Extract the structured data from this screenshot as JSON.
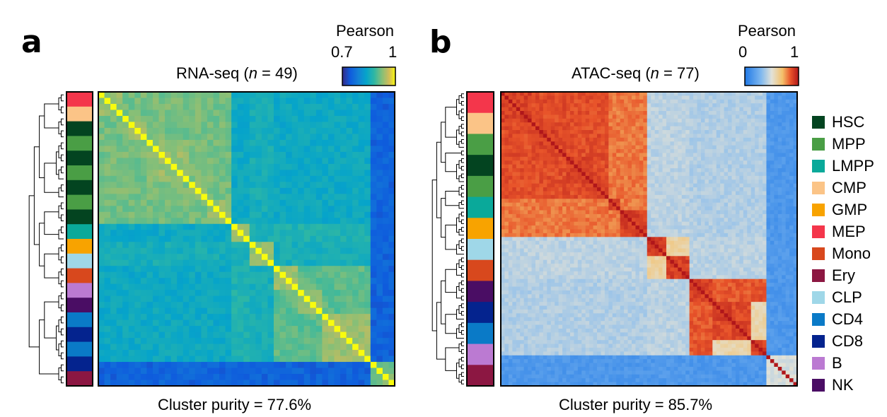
{
  "panels": [
    {
      "letter": "a",
      "title_prefix": "RNA-seq (",
      "title_n": "n",
      "title_suffix": " = 49)",
      "colorbar_label": "Pearson",
      "colorbar_min": "0.7",
      "colorbar_max": "1",
      "purity": "Cluster purity = 77.6%"
    },
    {
      "letter": "b",
      "title_prefix": "ATAC-seq (",
      "title_n": "n",
      "title_suffix": " = 77)",
      "colorbar_label": "Pearson",
      "colorbar_min": "0",
      "colorbar_max": "1",
      "purity": "Cluster purity = 85.7%"
    }
  ],
  "legend": [
    {
      "label": "HSC",
      "color": "#034420"
    },
    {
      "label": "MPP",
      "color": "#4a9e45"
    },
    {
      "label": "LMPP",
      "color": "#0aa99a"
    },
    {
      "label": "CMP",
      "color": "#fbc487"
    },
    {
      "label": "GMP",
      "color": "#f8a300"
    },
    {
      "label": "MEP",
      "color": "#f4364b"
    },
    {
      "label": "Mono",
      "color": "#d8481d"
    },
    {
      "label": "Ery",
      "color": "#8c1742"
    },
    {
      "label": "CLP",
      "color": "#9fd7e8"
    },
    {
      "label": "CD4",
      "color": "#0a7ac7"
    },
    {
      "label": "CD8",
      "color": "#04238e"
    },
    {
      "label": "B",
      "color": "#bb7ad2"
    },
    {
      "label": "NK",
      "color": "#4a0d64"
    }
  ],
  "chart_data": [
    {
      "type": "heatmap",
      "title": "RNA-seq (n = 49)",
      "n": 49,
      "metric": "Pearson",
      "color_range": [
        0.7,
        1
      ],
      "colorscale": "parula",
      "row_annotation_order": [
        "MEP",
        "CMP",
        "HSC",
        "MPP",
        "HSC",
        "MPP",
        "HSC",
        "MPP",
        "HSC",
        "LMPP",
        "GMP",
        "CLP",
        "Mono",
        "B",
        "NK",
        "CD4",
        "CD8",
        "CD4",
        "CD8",
        "Ery"
      ],
      "blocks": [
        {
          "label": "MEP",
          "size": 4
        },
        {
          "label": "CMP",
          "size": 4
        },
        {
          "label": "HSC/MPP",
          "size": 7
        },
        {
          "label": "LMPP",
          "size": 3
        },
        {
          "label": "GMP",
          "size": 4
        },
        {
          "label": "CLP",
          "size": 3
        },
        {
          "label": "Mono",
          "size": 4
        },
        {
          "label": "B",
          "size": 4
        },
        {
          "label": "NK",
          "size": 4
        },
        {
          "label": "CD4/CD8",
          "size": 8
        },
        {
          "label": "Ery",
          "size": 4
        }
      ],
      "cluster_purity": 77.6
    },
    {
      "type": "heatmap",
      "title": "ATAC-seq (n = 77)",
      "n": 77,
      "metric": "Pearson",
      "color_range": [
        0,
        1
      ],
      "colorscale": "blue-white-red",
      "row_annotation_order": [
        "MEP",
        "CMP",
        "MPP",
        "HSC",
        "MPP",
        "LMPP",
        "GMP",
        "CLP",
        "Mono",
        "NK",
        "CD8",
        "CD4",
        "B",
        "Ery"
      ],
      "blocks": [
        {
          "label": "MEP",
          "size": 8
        },
        {
          "label": "CMP",
          "size": 7
        },
        {
          "label": "MPP",
          "size": 2
        },
        {
          "label": "HSC",
          "size": 7
        },
        {
          "label": "MPP",
          "size": 4
        },
        {
          "label": "LMPP",
          "size": 3
        },
        {
          "label": "GMP",
          "size": 7
        },
        {
          "label": "CLP",
          "size": 5
        },
        {
          "label": "Mono",
          "size": 6
        },
        {
          "label": "NK",
          "size": 6
        },
        {
          "label": "CD8",
          "size": 5
        },
        {
          "label": "CD4",
          "size": 5
        },
        {
          "label": "B",
          "size": 4
        },
        {
          "label": "Ery",
          "size": 8
        }
      ],
      "cluster_purity": 85.7
    }
  ]
}
